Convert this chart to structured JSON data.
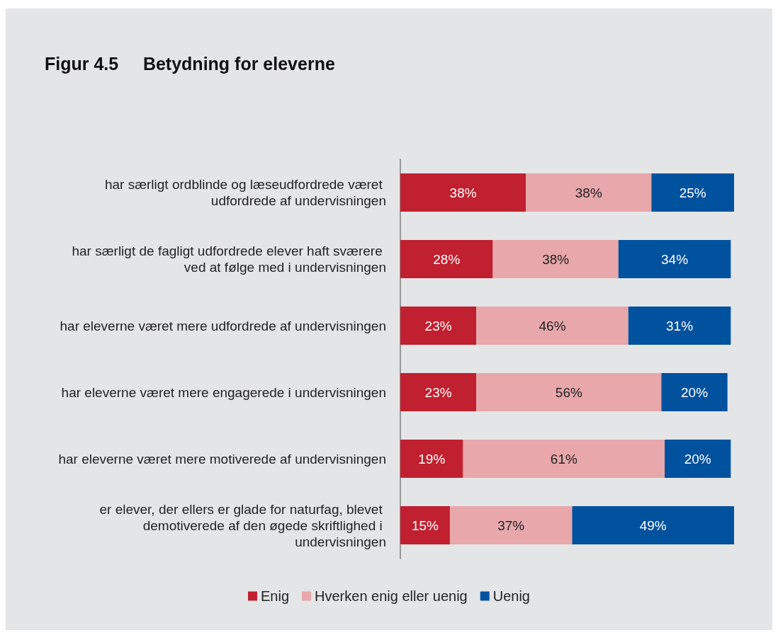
{
  "chart_data": {
    "type": "bar",
    "orientation": "horizontal",
    "stacked": true,
    "legend": "bottom",
    "title": "Figur 4.5     Betydning for eleverne",
    "categories": [
      "har særligt ordblinde og læseudfordrede været udfordrede af undervisningen",
      "har særligt de fagligt udfordrede elever haft sværere ved at følge med i undervisningen",
      "har eleverne været mere udfordrede af undervisningen",
      "har eleverne været mere engagerede i undervisningen",
      "har eleverne været mere motiverede af undervisningen",
      "er elever, der ellers er glade for naturfag, blevet demotiverede af den øgede skriftlighed i undervisningen"
    ],
    "series": [
      {
        "name": "Enig",
        "color": "#c0202f",
        "values": [
          38,
          28,
          23,
          23,
          19,
          15
        ],
        "value_labels": [
          "38%",
          "28%",
          "23%",
          "23%",
          "19%",
          "15%"
        ]
      },
      {
        "name": "Hverken enig eller uenig",
        "color": "#e8a7ab",
        "values": [
          38,
          38,
          46,
          56,
          61,
          37
        ],
        "value_labels": [
          "38%",
          "38%",
          "46%",
          "56%",
          "61%",
          "37%"
        ]
      },
      {
        "name": "Uenig",
        "color": "#00519e",
        "values": [
          25,
          34,
          31,
          20,
          20,
          49
        ],
        "value_labels": [
          "25%",
          "34%",
          "31%",
          "20%",
          "20%",
          "49%"
        ]
      }
    ]
  }
}
